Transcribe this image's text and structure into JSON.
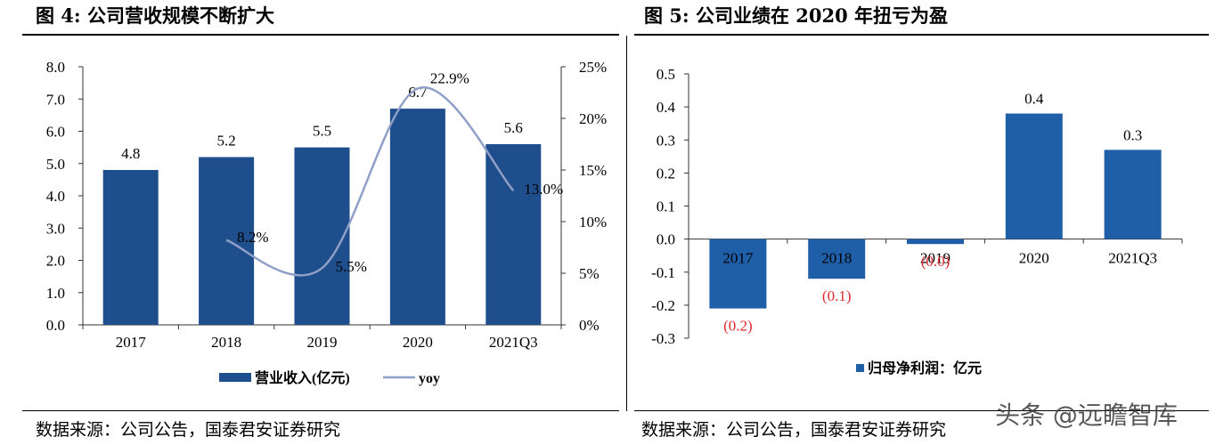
{
  "left": {
    "title": "图 4:  公司营收规模不断扩大",
    "source": "数据来源：公司公告，国泰君安证券研究",
    "chart_data": {
      "type": "bar",
      "categories": [
        "2017",
        "2018",
        "2019",
        "2020",
        "2021Q3"
      ],
      "series": [
        {
          "name": "营业收入(亿元)",
          "kind": "bar",
          "axis": "left",
          "values": [
            4.8,
            5.2,
            5.5,
            6.7,
            5.6
          ],
          "labels": [
            "4.8",
            "5.2",
            "5.5",
            "6.7",
            "5.6"
          ]
        },
        {
          "name": "yoy",
          "kind": "line",
          "axis": "right",
          "values": [
            null,
            8.2,
            5.5,
            22.9,
            13.0
          ],
          "labels": [
            "",
            "8.2%",
            "5.5%",
            "22.9%",
            "13.0%"
          ]
        }
      ],
      "ylim_left": [
        0,
        8
      ],
      "yticks_left": [
        "0.0",
        "1.0",
        "2.0",
        "3.0",
        "4.0",
        "5.0",
        "6.0",
        "7.0",
        "8.0"
      ],
      "ylim_right": [
        0,
        25
      ],
      "yticks_right": [
        "0%",
        "5%",
        "10%",
        "15%",
        "20%",
        "25%"
      ],
      "legend_position": "bottom",
      "bar_color": "#1F4E8C",
      "line_color": "#8F9FC7"
    }
  },
  "right": {
    "title": "图 5: 公司业绩在 2020 年扭亏为盈",
    "source": "数据来源：公司公告，国泰君安证券研究",
    "chart_data": {
      "type": "bar",
      "categories": [
        "2017",
        "2018",
        "2019",
        "2020",
        "2021Q3"
      ],
      "series": [
        {
          "name": "归母净利润：亿元",
          "values": [
            -0.21,
            -0.12,
            -0.015,
            0.38,
            0.27
          ],
          "labels": [
            "(0.2)",
            "(0.1)",
            "(0.0)",
            "0.4",
            "0.3"
          ]
        }
      ],
      "ylim": [
        -0.3,
        0.5
      ],
      "yticks": [
        "-0.3",
        "-0.2",
        "-0.1",
        "0.0",
        "0.1",
        "0.2",
        "0.3",
        "0.4",
        "0.5"
      ],
      "legend_position": "bottom-left",
      "bar_color": "#1F5FA8",
      "negative_label_color": "#E0282E",
      "positive_label_color": "#000000"
    }
  },
  "watermark": "头条 @远瞻智库"
}
